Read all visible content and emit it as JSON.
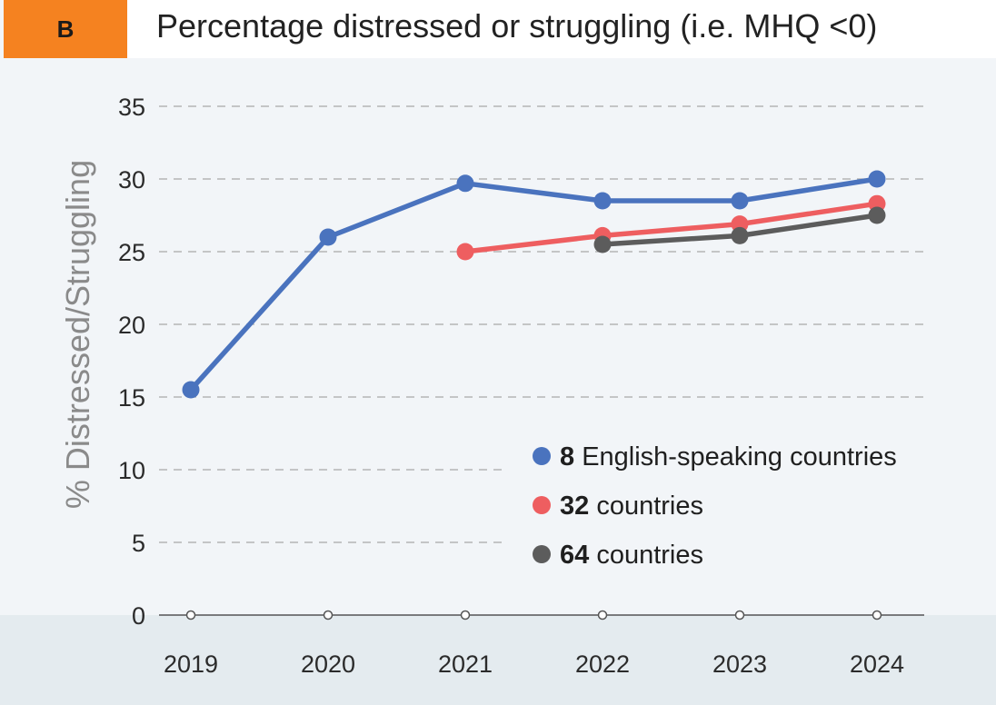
{
  "panel": {
    "badge": "B"
  },
  "colors": {
    "background": "#f2f5f8",
    "accent": "#f58220",
    "grid": "#a9a9a9",
    "axis": "#555555"
  },
  "chart_data": {
    "type": "line",
    "title": "Percentage distressed or struggling (i.e. MHQ <0)",
    "xlabel": "",
    "ylabel": "% Distressed/Struggling",
    "x": [
      "2019",
      "2020",
      "2021",
      "2022",
      "2023",
      "2024"
    ],
    "ylim": [
      0,
      35
    ],
    "yticks": [
      "0",
      "5",
      "10",
      "15",
      "20",
      "25",
      "30",
      "35"
    ],
    "grid": "horizontal dashed",
    "legend_position": "bottom-right",
    "series": [
      {
        "name": "English-speaking countries",
        "count": "8",
        "color": "#4a73be",
        "values": [
          15.5,
          26.0,
          29.7,
          28.5,
          28.5,
          30.0
        ]
      },
      {
        "name": "countries",
        "count": "32",
        "color": "#ee5e60",
        "values": [
          null,
          null,
          25.0,
          26.1,
          26.9,
          28.3
        ]
      },
      {
        "name": "countries",
        "count": "64",
        "color": "#5c5c5c",
        "values": [
          null,
          null,
          null,
          25.5,
          26.1,
          27.5
        ]
      }
    ]
  }
}
